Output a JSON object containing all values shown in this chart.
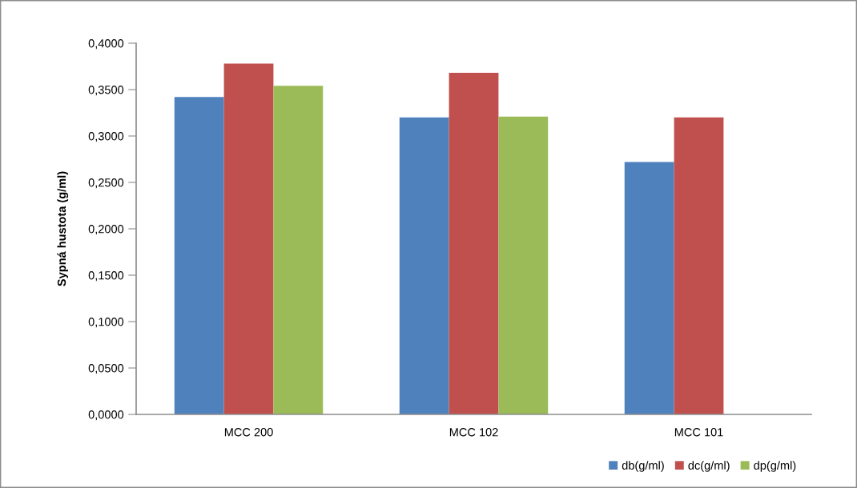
{
  "chart_data": {
    "type": "bar",
    "categories": [
      "MCC 200",
      "MCC 102",
      "MCC 101"
    ],
    "series": [
      {
        "name": "db(g/ml)",
        "color": "#4f81bd",
        "values": [
          0.342,
          0.32,
          0.272
        ]
      },
      {
        "name": "dc(g/ml)",
        "color": "#c0504d",
        "values": [
          0.378,
          0.368,
          0.32
        ]
      },
      {
        "name": "dp(g/ml)",
        "color": "#9bbb59",
        "values": [
          0.354,
          0.321,
          null
        ]
      }
    ],
    "ylabel": "Sypná hustota (g/ml)",
    "ylim": [
      0,
      0.4
    ],
    "yticks": [
      {
        "value": 0,
        "label": "0,0000"
      },
      {
        "value": 0.05,
        "label": "0,0500"
      },
      {
        "value": 0.1,
        "label": "0,1000"
      },
      {
        "value": 0.15,
        "label": "0,1500"
      },
      {
        "value": 0.2,
        "label": "0,2000"
      },
      {
        "value": 0.25,
        "label": "0,2500"
      },
      {
        "value": 0.3,
        "label": "0,3000"
      },
      {
        "value": 0.35,
        "label": "0,3500"
      },
      {
        "value": 0.4,
        "label": "0,4000"
      }
    ],
    "legend": "bottom right"
  }
}
